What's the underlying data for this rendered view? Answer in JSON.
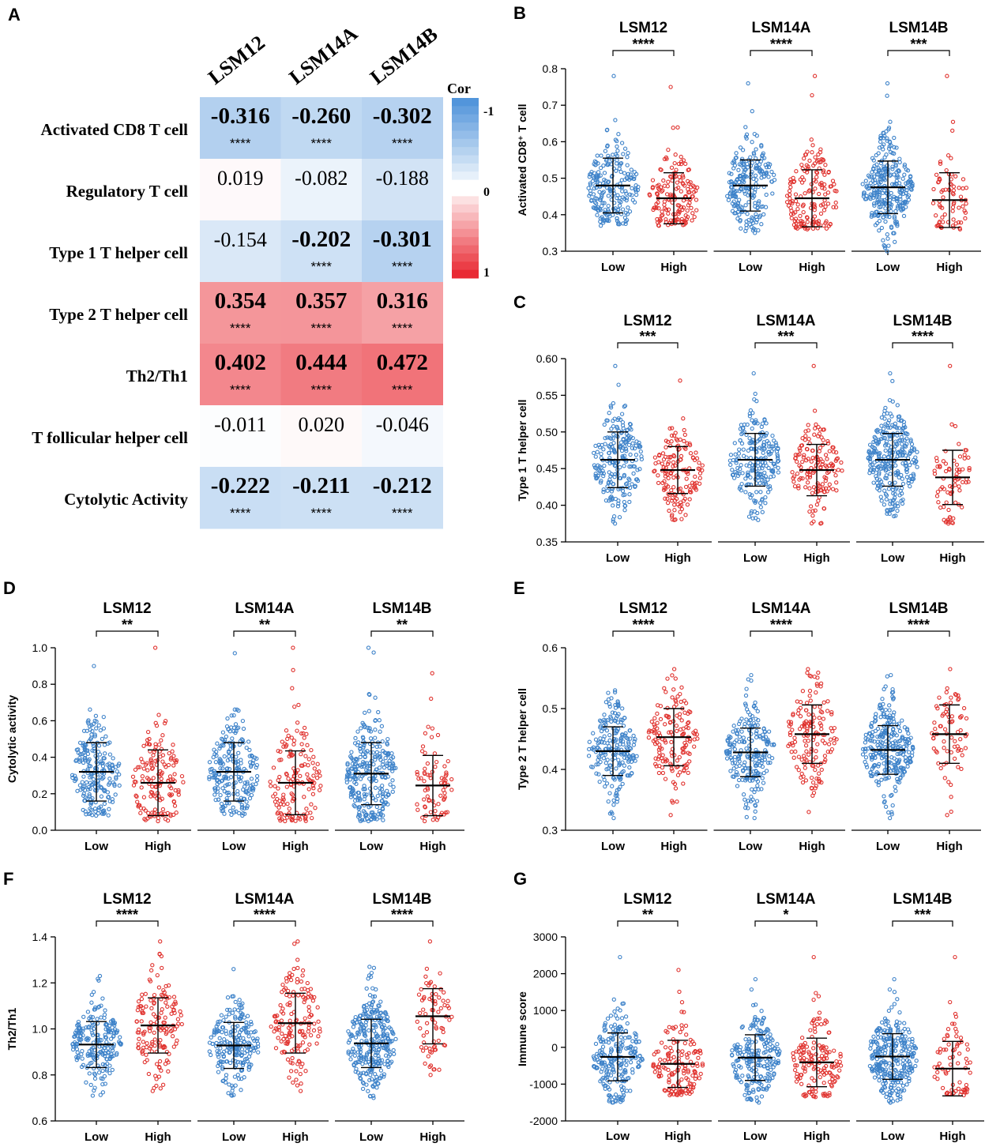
{
  "panel_labels": [
    "A",
    "B",
    "C",
    "D",
    "E",
    "F",
    "G"
  ],
  "heatmap": {
    "columns": [
      "LSM12",
      "LSM14A",
      "LSM14B"
    ],
    "rows": [
      {
        "label": "Activated CD8 T cell",
        "values": [
          -0.316,
          -0.26,
          -0.302
        ],
        "display": [
          "-0.316",
          "-0.260",
          "-0.302"
        ],
        "stars": [
          "****",
          "****",
          "****"
        ],
        "bold": [
          true,
          true,
          true
        ]
      },
      {
        "label": "Regulatory T cell",
        "values": [
          0.019,
          -0.082,
          -0.188
        ],
        "display": [
          "0.019",
          "-0.082",
          "-0.188"
        ],
        "stars": [
          "",
          "",
          ""
        ],
        "bold": [
          false,
          false,
          false
        ]
      },
      {
        "label": "Type 1 T helper cell",
        "values": [
          -0.154,
          -0.202,
          -0.301
        ],
        "display": [
          "-0.154",
          "-0.202",
          "-0.301"
        ],
        "stars": [
          "",
          "****",
          "****"
        ],
        "bold": [
          false,
          true,
          true
        ]
      },
      {
        "label": "Type 2 T helper cell",
        "values": [
          0.354,
          0.357,
          0.316
        ],
        "display": [
          "0.354",
          "0.357",
          "0.316"
        ],
        "stars": [
          "****",
          "****",
          "****"
        ],
        "bold": [
          true,
          true,
          true
        ]
      },
      {
        "label": "Th2/Th1",
        "values": [
          0.402,
          0.444,
          0.472
        ],
        "display": [
          "0.402",
          "0.444",
          "0.472"
        ],
        "stars": [
          "****",
          "****",
          "****"
        ],
        "bold": [
          true,
          true,
          true
        ]
      },
      {
        "label": "T follicular helper cell",
        "values": [
          -0.011,
          0.02,
          -0.046
        ],
        "display": [
          "-0.011",
          "0.020",
          "-0.046"
        ],
        "stars": [
          "",
          "",
          ""
        ],
        "bold": [
          false,
          false,
          false
        ]
      },
      {
        "label": "Cytolytic Activity",
        "values": [
          -0.222,
          -0.211,
          -0.212
        ],
        "display": [
          "-0.222",
          "-0.211",
          "-0.212"
        ],
        "stars": [
          "****",
          "****",
          "****"
        ],
        "bold": [
          true,
          true,
          true
        ]
      }
    ],
    "legend": {
      "title": "Cor",
      "labels": [
        "-1",
        "0",
        "1"
      ],
      "neg_color": "#4a90d9",
      "pos_color": "#e8202a"
    }
  },
  "colors": {
    "low": "#3d82c9",
    "high": "#e0322e",
    "axis": "#000000"
  },
  "chart_data": [
    {
      "panel": "B",
      "type": "scatter",
      "ylabel": "Activated CD8⁺ T cell",
      "ylim": [
        0.3,
        0.8
      ],
      "yticks": [
        "0.3",
        "0.4",
        "0.5",
        "0.6",
        "0.7",
        "0.8"
      ],
      "groups": [
        {
          "gene": "LSM12",
          "sig": "****",
          "low": {
            "mean": 0.48,
            "sd": 0.075,
            "n": 220,
            "min": 0.37,
            "max": 0.78
          },
          "high": {
            "mean": 0.445,
            "sd": 0.07,
            "n": 160,
            "min": 0.37,
            "max": 0.75
          }
        },
        {
          "gene": "LSM14A",
          "sig": "****",
          "low": {
            "mean": 0.48,
            "sd": 0.07,
            "n": 220,
            "min": 0.35,
            "max": 0.76
          },
          "high": {
            "mean": 0.445,
            "sd": 0.078,
            "n": 160,
            "min": 0.36,
            "max": 0.78
          }
        },
        {
          "gene": "LSM14B",
          "sig": "***",
          "low": {
            "mean": 0.475,
            "sd": 0.072,
            "n": 290,
            "min": 0.3,
            "max": 0.76
          },
          "high": {
            "mean": 0.44,
            "sd": 0.075,
            "n": 75,
            "min": 0.36,
            "max": 0.78
          }
        }
      ],
      "xlabels": [
        "Low",
        "High"
      ]
    },
    {
      "panel": "C",
      "type": "scatter",
      "ylabel": "Type 1 T helper cell",
      "ylim": [
        0.35,
        0.6
      ],
      "yticks": [
        "0.35",
        "0.40",
        "0.45",
        "0.50",
        "0.55",
        "0.60"
      ],
      "groups": [
        {
          "gene": "LSM12",
          "sig": "***",
          "low": {
            "mean": 0.462,
            "sd": 0.038,
            "n": 220,
            "min": 0.375,
            "max": 0.59
          },
          "high": {
            "mean": 0.448,
            "sd": 0.032,
            "n": 150,
            "min": 0.38,
            "max": 0.57
          }
        },
        {
          "gene": "LSM14A",
          "sig": "***",
          "low": {
            "mean": 0.462,
            "sd": 0.036,
            "n": 220,
            "min": 0.38,
            "max": 0.58
          },
          "high": {
            "mean": 0.448,
            "sd": 0.035,
            "n": 150,
            "min": 0.375,
            "max": 0.59
          }
        },
        {
          "gene": "LSM14B",
          "sig": "****",
          "low": {
            "mean": 0.462,
            "sd": 0.036,
            "n": 290,
            "min": 0.385,
            "max": 0.58
          },
          "high": {
            "mean": 0.438,
            "sd": 0.037,
            "n": 75,
            "min": 0.375,
            "max": 0.59
          }
        }
      ],
      "xlabels": [
        "Low",
        "High"
      ]
    },
    {
      "panel": "D",
      "type": "scatter",
      "ylabel": "Cytolytic activity",
      "ylim": [
        0.0,
        1.0
      ],
      "yticks": [
        "0.0",
        "0.2",
        "0.4",
        "0.6",
        "0.8",
        "1.0"
      ],
      "groups": [
        {
          "gene": "LSM12",
          "sig": "**",
          "low": {
            "mean": 0.32,
            "sd": 0.16,
            "n": 220,
            "min": 0.08,
            "max": 0.9
          },
          "high": {
            "mean": 0.26,
            "sd": 0.18,
            "n": 150,
            "min": 0.05,
            "max": 1.0
          }
        },
        {
          "gene": "LSM14A",
          "sig": "**",
          "low": {
            "mean": 0.32,
            "sd": 0.16,
            "n": 220,
            "min": 0.08,
            "max": 0.97
          },
          "high": {
            "mean": 0.26,
            "sd": 0.175,
            "n": 150,
            "min": 0.05,
            "max": 1.0
          }
        },
        {
          "gene": "LSM14B",
          "sig": "**",
          "low": {
            "mean": 0.31,
            "sd": 0.17,
            "n": 290,
            "min": 0.05,
            "max": 1.0
          },
          "high": {
            "mean": 0.245,
            "sd": 0.165,
            "n": 75,
            "min": 0.05,
            "max": 0.86
          }
        }
      ],
      "xlabels": [
        "Low",
        "High"
      ]
    },
    {
      "panel": "E",
      "type": "scatter",
      "ylabel": "Type 2 T helper cell",
      "ylim": [
        0.3,
        0.6
      ],
      "yticks": [
        "0.3",
        "0.4",
        "0.5",
        "0.6"
      ],
      "groups": [
        {
          "gene": "LSM12",
          "sig": "****",
          "low": {
            "mean": 0.43,
            "sd": 0.04,
            "n": 220,
            "min": 0.32,
            "max": 0.53
          },
          "high": {
            "mean": 0.453,
            "sd": 0.047,
            "n": 150,
            "min": 0.325,
            "max": 0.565
          }
        },
        {
          "gene": "LSM14A",
          "sig": "****",
          "low": {
            "mean": 0.428,
            "sd": 0.04,
            "n": 220,
            "min": 0.32,
            "max": 0.555
          },
          "high": {
            "mean": 0.458,
            "sd": 0.048,
            "n": 150,
            "min": 0.33,
            "max": 0.565
          }
        },
        {
          "gene": "LSM14B",
          "sig": "****",
          "low": {
            "mean": 0.432,
            "sd": 0.04,
            "n": 290,
            "min": 0.32,
            "max": 0.555
          },
          "high": {
            "mean": 0.458,
            "sd": 0.048,
            "n": 75,
            "min": 0.325,
            "max": 0.565
          }
        }
      ],
      "xlabels": [
        "Low",
        "High"
      ]
    },
    {
      "panel": "F",
      "type": "scatter",
      "ylabel": "Th2/Th1",
      "ylim": [
        0.6,
        1.4
      ],
      "yticks": [
        "0.6",
        "0.8",
        "1.0",
        "1.2",
        "1.4"
      ],
      "groups": [
        {
          "gene": "LSM12",
          "sig": "****",
          "low": {
            "mean": 0.932,
            "sd": 0.1,
            "n": 220,
            "min": 0.71,
            "max": 1.23
          },
          "high": {
            "mean": 1.015,
            "sd": 0.12,
            "n": 150,
            "min": 0.73,
            "max": 1.38
          }
        },
        {
          "gene": "LSM14A",
          "sig": "****",
          "low": {
            "mean": 0.928,
            "sd": 0.1,
            "n": 220,
            "min": 0.71,
            "max": 1.26
          },
          "high": {
            "mean": 1.025,
            "sd": 0.13,
            "n": 150,
            "min": 0.73,
            "max": 1.38
          }
        },
        {
          "gene": "LSM14B",
          "sig": "****",
          "low": {
            "mean": 0.937,
            "sd": 0.105,
            "n": 290,
            "min": 0.7,
            "max": 1.27
          },
          "high": {
            "mean": 1.055,
            "sd": 0.12,
            "n": 75,
            "min": 0.8,
            "max": 1.38
          }
        }
      ],
      "xlabels": [
        "Low",
        "High"
      ]
    },
    {
      "panel": "G",
      "type": "scatter",
      "ylabel": "Immune score",
      "ylim": [
        -2000,
        3000
      ],
      "yticks": [
        "-2000",
        "-1000",
        "0",
        "1000",
        "2000",
        "3000"
      ],
      "groups": [
        {
          "gene": "LSM12",
          "sig": "**",
          "low": {
            "mean": -260,
            "sd": 650,
            "n": 220,
            "min": -1500,
            "max": 2450
          },
          "high": {
            "mean": -450,
            "sd": 640,
            "n": 150,
            "min": -1300,
            "max": 2100
          }
        },
        {
          "gene": "LSM14A",
          "sig": "*",
          "low": {
            "mean": -280,
            "sd": 620,
            "n": 220,
            "min": -1500,
            "max": 1850
          },
          "high": {
            "mean": -410,
            "sd": 660,
            "n": 150,
            "min": -1350,
            "max": 2450
          }
        },
        {
          "gene": "LSM14B",
          "sig": "***",
          "low": {
            "mean": -250,
            "sd": 620,
            "n": 290,
            "min": -1500,
            "max": 1850
          },
          "high": {
            "mean": -580,
            "sd": 740,
            "n": 75,
            "min": -1300,
            "max": 2450
          }
        }
      ],
      "xlabels": [
        "Low",
        "High"
      ]
    }
  ]
}
